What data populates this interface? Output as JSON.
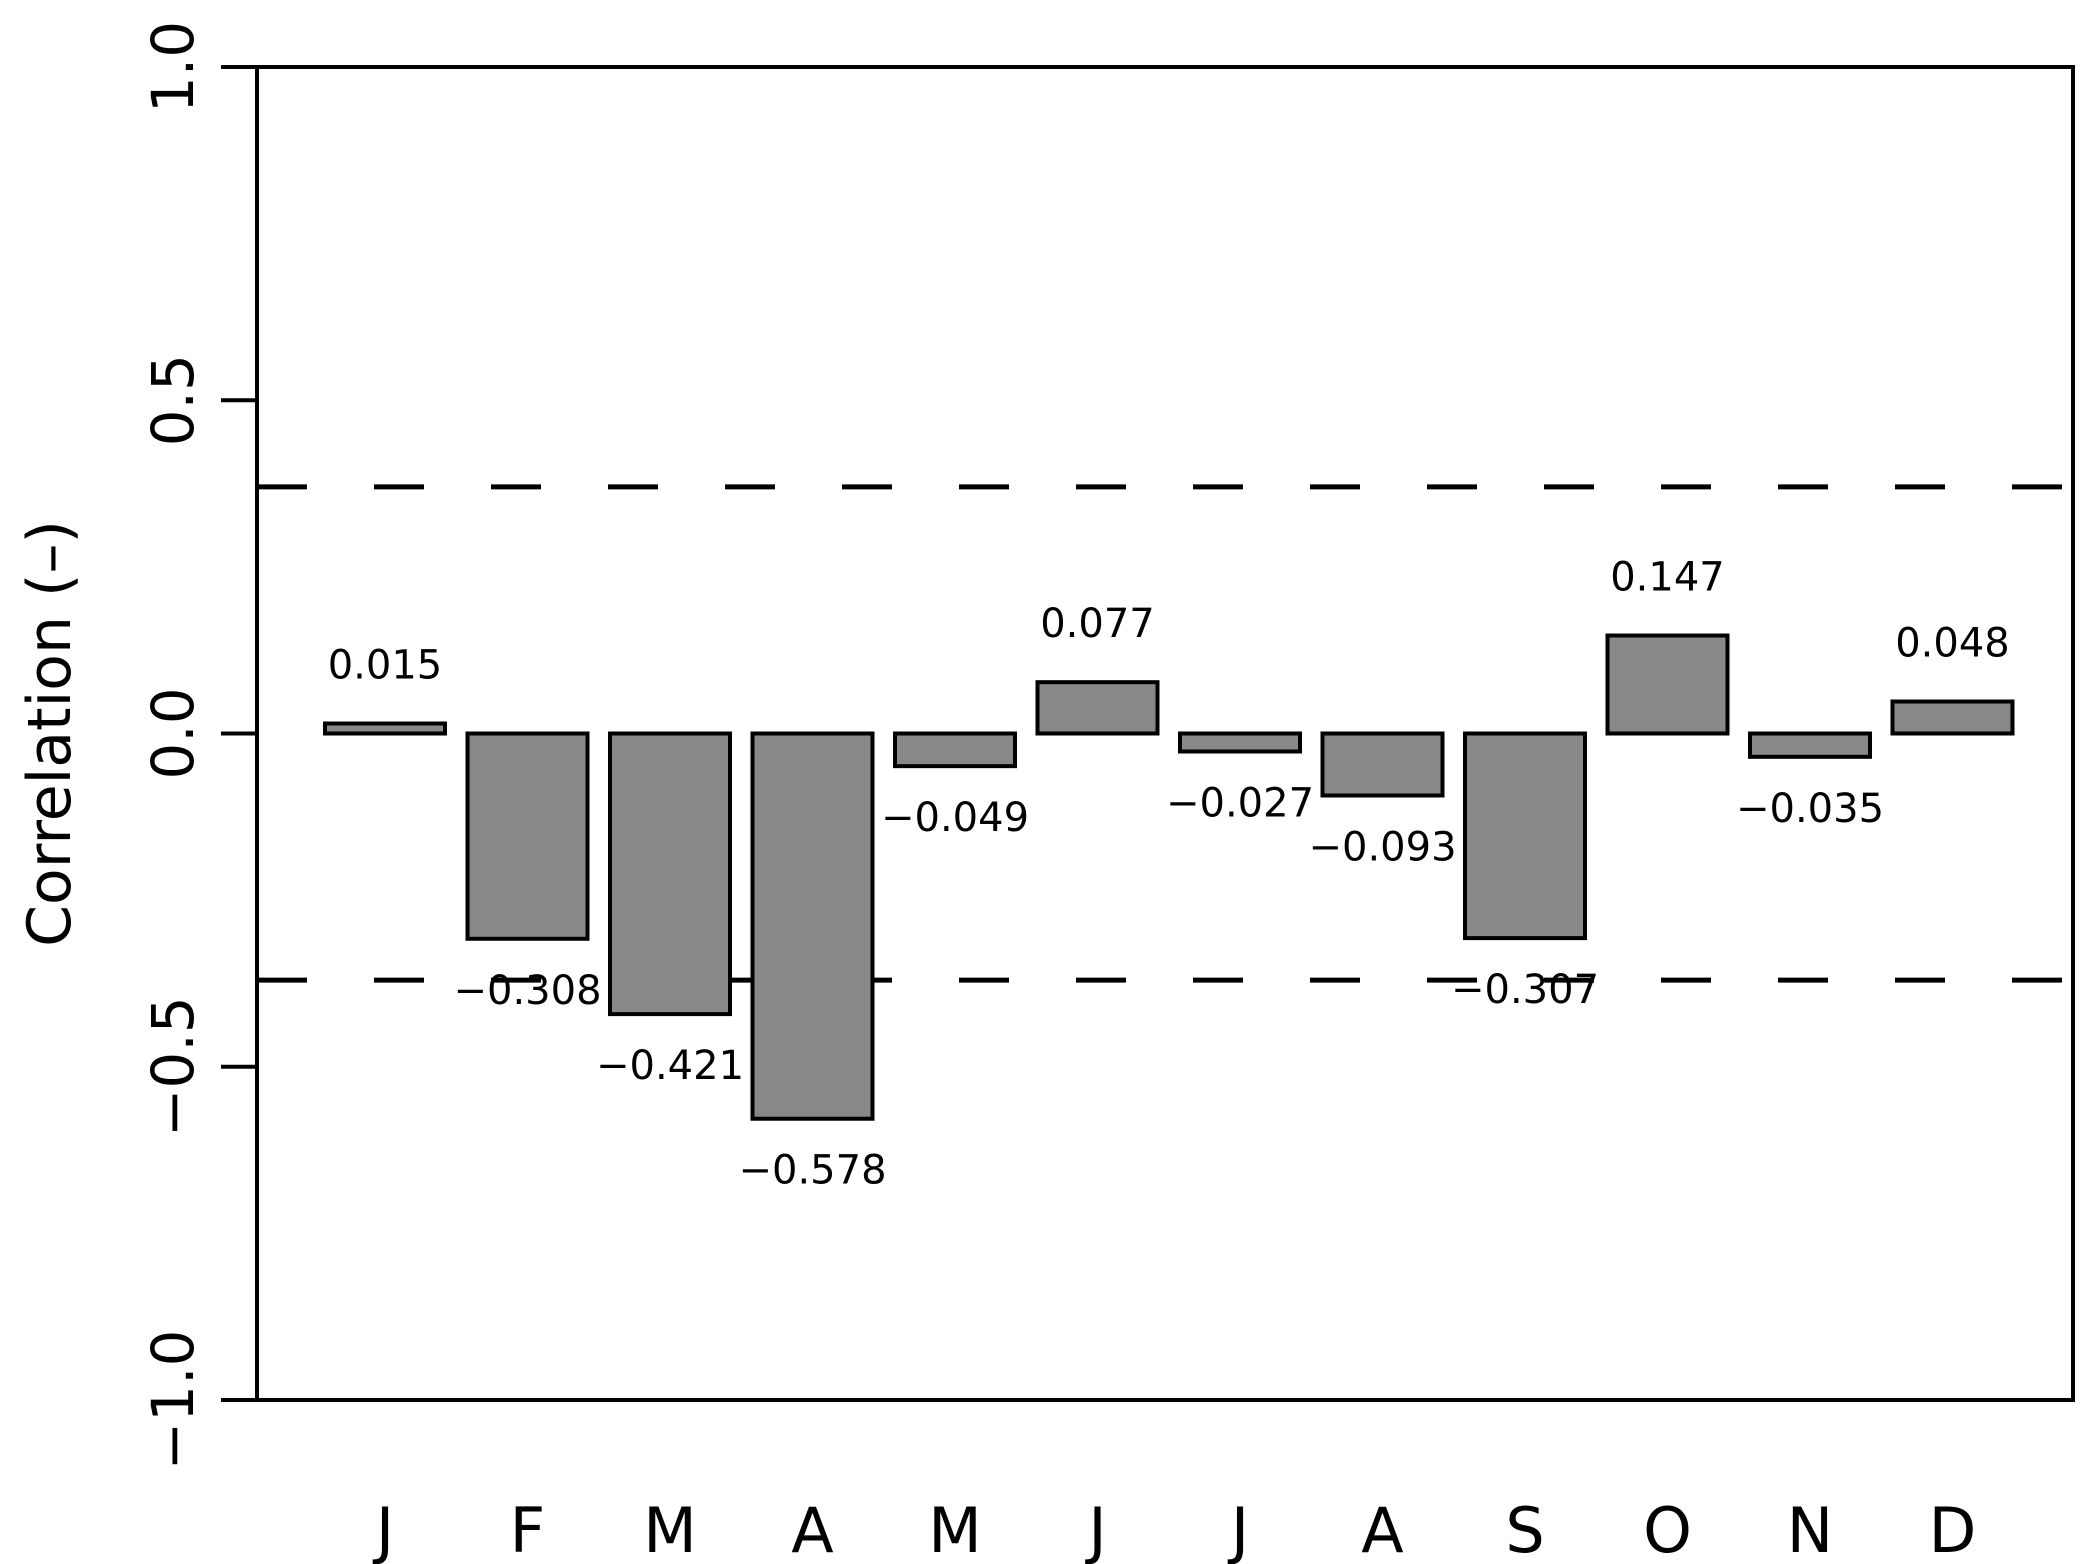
{
  "chart_data": {
    "type": "bar",
    "title": "",
    "xlabel": "",
    "ylabel": "Correlation (–)",
    "categories": [
      "J",
      "F",
      "M",
      "A",
      "M",
      "J",
      "J",
      "A",
      "S",
      "O",
      "N",
      "D"
    ],
    "values": [
      0.015,
      -0.308,
      -0.421,
      -0.578,
      -0.049,
      0.077,
      -0.027,
      -0.093,
      -0.307,
      0.147,
      -0.035,
      0.048
    ],
    "value_labels": [
      "0.015",
      "−0.308",
      "−0.421",
      "−0.578",
      "−0.049",
      "0.077",
      "−0.027",
      "−0.093",
      "−0.307",
      "0.147",
      "−0.035",
      "0.048"
    ],
    "ylim": [
      -1.0,
      1.0
    ],
    "yticks": [
      -1.0,
      -0.5,
      0.0,
      0.5,
      1.0
    ],
    "ytick_labels": [
      "−1.0",
      "−0.5",
      "0.0",
      "0.5",
      "1.0"
    ],
    "reference_lines": [
      0.37,
      -0.37
    ],
    "reference_line_style": "dashed",
    "bar_color": "#888888",
    "bar_edge_color": "#000000",
    "grid": false,
    "legend": "none"
  }
}
